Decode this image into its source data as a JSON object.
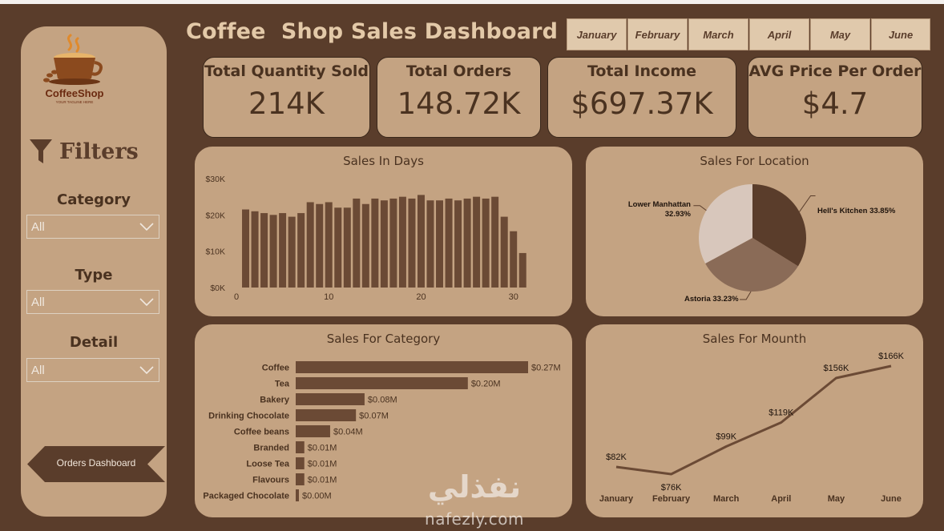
{
  "title": "Coffee  Shop Sales Dashboard",
  "logo": {
    "brand": "CoffeeShop",
    "tagline": "YOUR TAGLINE HERE"
  },
  "filters": {
    "title": "Filters",
    "icon": "funnel-icon",
    "category": {
      "label": "Category",
      "value": "All"
    },
    "type": {
      "label": "Type",
      "value": "All"
    },
    "detail": {
      "label": "Detail",
      "value": "All"
    }
  },
  "nav_button": {
    "label": "Orders Dashboard"
  },
  "months": [
    "January",
    "February",
    "March",
    "April",
    "May",
    "June"
  ],
  "kpis": [
    {
      "label": "Total Quantity Sold",
      "value": "214K"
    },
    {
      "label": "Total Orders",
      "value": "148.72K"
    },
    {
      "label": "Total Income",
      "value": "$697.37K"
    },
    {
      "label": "AVG Price Per Order",
      "value": "$4.7"
    }
  ],
  "colors": {
    "background": "#5a3d2b",
    "card": "#c4a382",
    "bar": "#6b4a35",
    "month_button": "#e0c9ac",
    "title": "#e3c9a8"
  },
  "watermark": {
    "arabic": "نفذلي",
    "latin": "nafezly.com"
  },
  "chart_data": [
    {
      "type": "bar",
      "title": "Sales In Days",
      "x": [
        1,
        2,
        3,
        4,
        5,
        6,
        7,
        8,
        9,
        10,
        11,
        12,
        13,
        14,
        15,
        16,
        17,
        18,
        19,
        20,
        21,
        22,
        23,
        24,
        25,
        26,
        27,
        28,
        29,
        30,
        31
      ],
      "values": [
        21500,
        21000,
        20500,
        20000,
        20500,
        19500,
        20500,
        23500,
        23000,
        23500,
        22000,
        22000,
        24500,
        23000,
        24500,
        24000,
        24500,
        25000,
        24500,
        25500,
        24000,
        24000,
        24500,
        24000,
        24500,
        25000,
        24500,
        25000,
        19500,
        15500,
        9500
      ],
      "yticks": [
        "$0K",
        "$10K",
        "$20K",
        "$30K"
      ],
      "xticks": [
        "0",
        "10",
        "20",
        "30"
      ],
      "ylim": [
        0,
        30000
      ],
      "xlim": [
        0,
        31.5
      ]
    },
    {
      "type": "pie",
      "title": "Sales For Location",
      "slices": [
        {
          "label": "Hell's Kitchen 33.85%",
          "value": 33.85,
          "color": "#5a3d2b"
        },
        {
          "label": "Astoria 33.23%",
          "value": 33.23,
          "color": "#8a6b57"
        },
        {
          "label": "Lower Manhattan",
          "label2": "32.93%",
          "value": 32.93,
          "color": "#d8c7bc"
        }
      ]
    },
    {
      "type": "bar",
      "orientation": "horizontal",
      "title": "Sales For Category",
      "categories": [
        "Coffee",
        "Tea",
        "Bakery",
        "Drinking Chocolate",
        "Coffee beans",
        "Branded",
        "Loose Tea",
        "Flavours",
        "Packaged Chocolate"
      ],
      "values": [
        0.27,
        0.2,
        0.08,
        0.07,
        0.04,
        0.01,
        0.01,
        0.01,
        0.0
      ],
      "labels": [
        "$0.27M",
        "$0.20M",
        "$0.08M",
        "$0.07M",
        "$0.04M",
        "$0.01M",
        "$0.01M",
        "$0.01M",
        "$0.00M"
      ],
      "xlim": [
        0,
        0.27
      ]
    },
    {
      "type": "line",
      "title": "Sales For Mounth",
      "categories": [
        "January",
        "February",
        "March",
        "April",
        "May",
        "June"
      ],
      "values": [
        82,
        76,
        99,
        119,
        156,
        166
      ],
      "labels": [
        "$82K",
        "$76K",
        "$99K",
        "$119K",
        "$156K",
        "$166K"
      ],
      "ylim": [
        70,
        170
      ]
    }
  ]
}
